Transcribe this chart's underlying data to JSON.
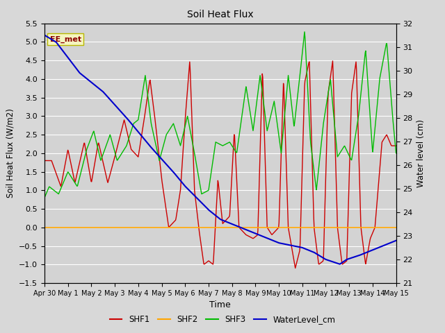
{
  "title": "Soil Heat Flux",
  "xlabel": "Time",
  "ylabel_left": "Soil Heat Flux (W/m2)",
  "ylabel_right": "Water level (cm)",
  "ylim_left": [
    -1.5,
    5.5
  ],
  "ylim_right": [
    21.0,
    32.0
  ],
  "annotation_text": "EE_met",
  "fig_bg_color": "#d8d8d8",
  "plot_bg_color": "#d3d3d3",
  "x_tick_labels": [
    "Apr 30",
    "May 1",
    "May 2",
    "May 3",
    "May 4",
    "May 5",
    "May 6",
    "May 7",
    "May 8",
    "May 9",
    "May 10",
    "May 11",
    "May 12",
    "May 13",
    "May 14",
    "May 15"
  ],
  "shf1_color": "#cc0000",
  "shf2_color": "#ffa500",
  "shf3_color": "#00bb00",
  "water_color": "#0000cc",
  "legend_items": [
    "SHF1",
    "SHF2",
    "SHF3",
    "WaterLevel_cm"
  ]
}
